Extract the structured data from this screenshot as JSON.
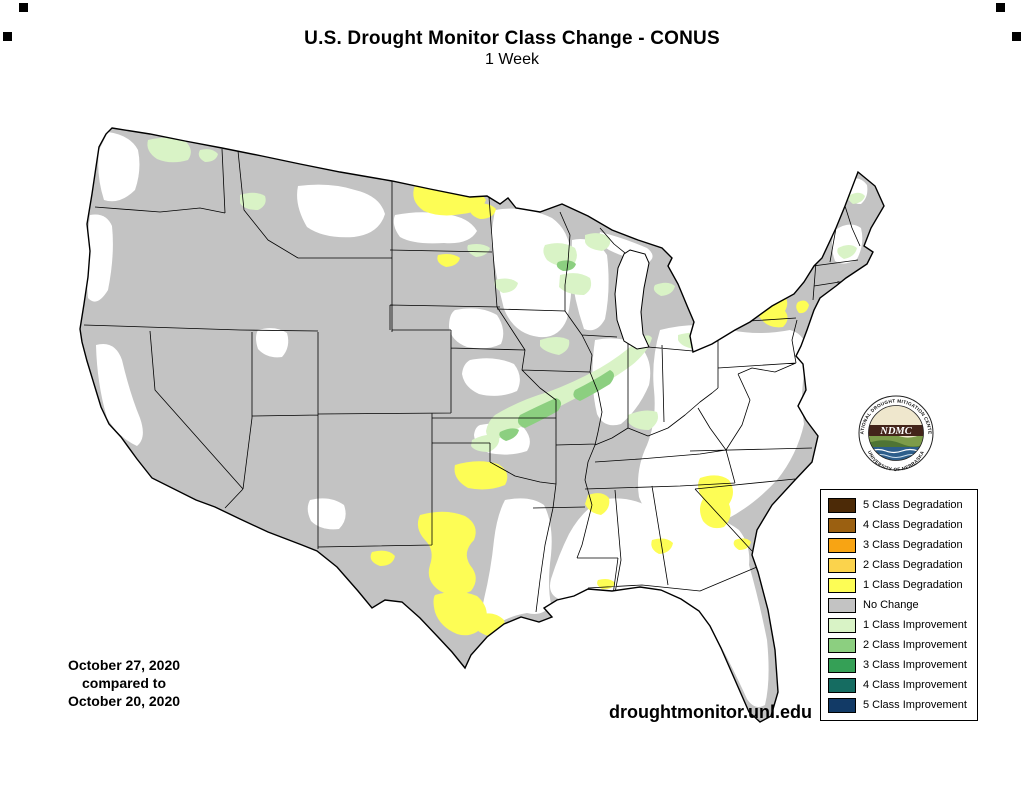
{
  "header": {
    "title": "U.S. Drought Monitor Class Change - CONUS",
    "subtitle": "1 Week"
  },
  "footer": {
    "date_line1": "October 27, 2020",
    "date_line2": "compared to",
    "date_line3": "October 20, 2020",
    "website": "droughtmonitor.unl.edu"
  },
  "logo": {
    "acronym": "NDMC",
    "arc_top": "NATIONAL DROUGHT MITIGATION CENTER",
    "arc_bottom": "UNIVERSITY OF NEBRASKA"
  },
  "legend": {
    "items": [
      {
        "key": "deg5",
        "label": "5 Class Degradation"
      },
      {
        "key": "deg4",
        "label": "4 Class Degradation"
      },
      {
        "key": "deg3",
        "label": "3 Class Degradation"
      },
      {
        "key": "deg2",
        "label": "2 Class Degradation"
      },
      {
        "key": "deg1",
        "label": "1 Class Degradation"
      },
      {
        "key": "nochange",
        "label": "No Change"
      },
      {
        "key": "imp1",
        "label": "1 Class Improvement"
      },
      {
        "key": "imp2",
        "label": "2 Class Improvement"
      },
      {
        "key": "imp3",
        "label": "3 Class Improvement"
      },
      {
        "key": "imp4",
        "label": "4 Class Improvement"
      },
      {
        "key": "imp5",
        "label": "5 Class Improvement"
      }
    ]
  },
  "colors": {
    "deg5": "#4c2a07",
    "deg4": "#9b6011",
    "deg3": "#f8a413",
    "deg2": "#fbd34c",
    "deg1": "#fdfd55",
    "nochange": "#c3c3c3",
    "imp1": "#d9f3c6",
    "imp2": "#8ccf80",
    "imp3": "#35a056",
    "imp4": "#156c61",
    "imp5": "#123a66",
    "none": "#ffffff",
    "line": "#000000"
  }
}
